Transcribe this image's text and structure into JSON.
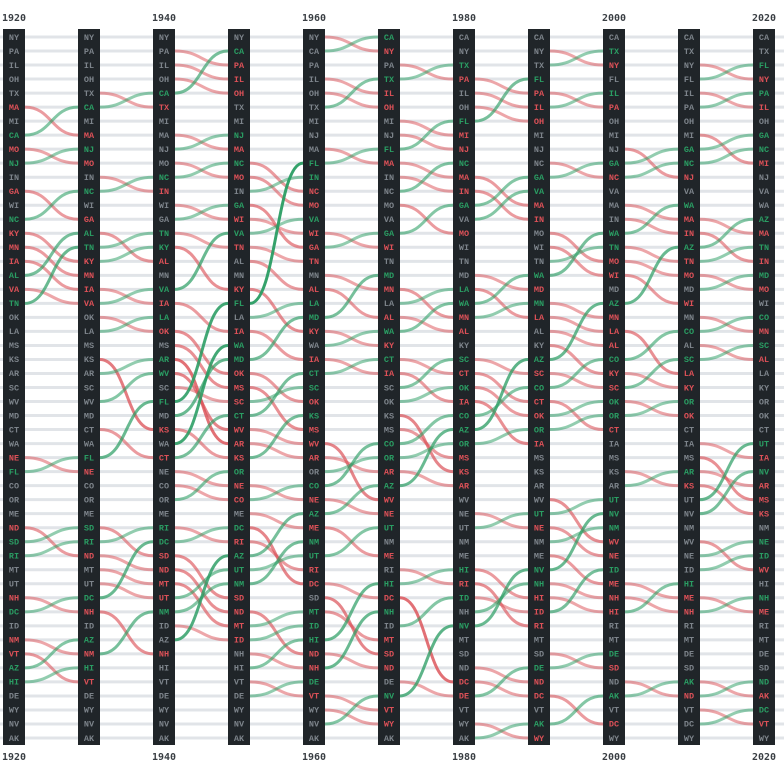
{
  "chart_data": {
    "type": "bump",
    "years": [
      "1920",
      null,
      "1940",
      null,
      "1960",
      null,
      "1980",
      null,
      "2000",
      null,
      "2020"
    ],
    "ranks": [
      [
        "NY",
        "PA",
        "IL",
        "OH",
        "TX",
        "MA",
        "MI",
        "CA",
        "MO",
        "NJ",
        "IN",
        "GA",
        "WI",
        "NC",
        "KY",
        "MN",
        "IA",
        "AL",
        "VA",
        "TN",
        "OK",
        "LA",
        "MS",
        "KS",
        "AR",
        "SC",
        "WV",
        "MD",
        "CT",
        "WA",
        "NE",
        "FL",
        "CO",
        "OR",
        "ME",
        "ND",
        "SD",
        "RI",
        "MT",
        "UT",
        "NH",
        "DC",
        "ID",
        "NM",
        "VT",
        "AZ",
        "HI",
        "DE",
        "WY",
        "NV",
        "AK"
      ],
      [
        "NY",
        "PA",
        "IL",
        "OH",
        "TX",
        "CA",
        "MI",
        "MA",
        "NJ",
        "MO",
        "IN",
        "NC",
        "WI",
        "GA",
        "AL",
        "TN",
        "KY",
        "MN",
        "IA",
        "VA",
        "OK",
        "LA",
        "MS",
        "KS",
        "AR",
        "SC",
        "WV",
        "MD",
        "CT",
        "WA",
        "FL",
        "NE",
        "CO",
        "OR",
        "ME",
        "SD",
        "RI",
        "ND",
        "MT",
        "UT",
        "DC",
        "NH",
        "ID",
        "AZ",
        "NM",
        "HI",
        "VT",
        "DE",
        "WY",
        "NV",
        "AK"
      ],
      [
        "NY",
        "PA",
        "IL",
        "OH",
        "CA",
        "TX",
        "MI",
        "MA",
        "NJ",
        "MO",
        "NC",
        "IN",
        "WI",
        "GA",
        "TN",
        "KY",
        "AL",
        "MN",
        "VA",
        "IA",
        "LA",
        "OK",
        "MS",
        "AR",
        "WV",
        "SC",
        "FL",
        "MD",
        "KS",
        "WA",
        "CT",
        "NE",
        "CO",
        "OR",
        "ME",
        "RI",
        "DC",
        "SD",
        "ND",
        "MT",
        "UT",
        "NM",
        "ID",
        "AZ",
        "NH",
        "HI",
        "VT",
        "DE",
        "WY",
        "NV",
        "AK"
      ],
      [
        "NY",
        "CA",
        "PA",
        "IL",
        "OH",
        "TX",
        "MI",
        "NJ",
        "MA",
        "NC",
        "MO",
        "IN",
        "GA",
        "WI",
        "VA",
        "TN",
        "AL",
        "MN",
        "KY",
        "FL",
        "LA",
        "IA",
        "WA",
        "MD",
        "OK",
        "MS",
        "SC",
        "CT",
        "WV",
        "AR",
        "KS",
        "OR",
        "NE",
        "CO",
        "ME",
        "DC",
        "RI",
        "AZ",
        "UT",
        "NM",
        "SD",
        "ND",
        "MT",
        "ID",
        "NH",
        "HI",
        "VT",
        "DE",
        "WY",
        "NV",
        "AK"
      ],
      [
        "NY",
        "CA",
        "PA",
        "IL",
        "OH",
        "TX",
        "MI",
        "NJ",
        "MA",
        "FL",
        "IN",
        "NC",
        "MO",
        "VA",
        "WI",
        "GA",
        "TN",
        "MN",
        "AL",
        "LA",
        "MD",
        "KY",
        "WA",
        "IA",
        "CT",
        "SC",
        "OK",
        "KS",
        "MS",
        "WV",
        "AR",
        "OR",
        "CO",
        "NE",
        "AZ",
        "ME",
        "NM",
        "UT",
        "RI",
        "DC",
        "SD",
        "MT",
        "ID",
        "HI",
        "ND",
        "NH",
        "DE",
        "VT",
        "WY",
        "NV",
        "AK"
      ],
      [
        "CA",
        "NY",
        "PA",
        "TX",
        "IL",
        "OH",
        "MI",
        "NJ",
        "FL",
        "MA",
        "IN",
        "NC",
        "MO",
        "VA",
        "GA",
        "WI",
        "TN",
        "MD",
        "MN",
        "LA",
        "AL",
        "WA",
        "KY",
        "CT",
        "IA",
        "SC",
        "OK",
        "KS",
        "MS",
        "CO",
        "OR",
        "AR",
        "AZ",
        "WV",
        "NE",
        "UT",
        "NM",
        "ME",
        "RI",
        "HI",
        "DC",
        "NH",
        "ID",
        "MT",
        "SD",
        "ND",
        "DE",
        "NV",
        "VT",
        "WY",
        "AK"
      ],
      [
        "CA",
        "NY",
        "TX",
        "PA",
        "IL",
        "OH",
        "FL",
        "MI",
        "NJ",
        "NC",
        "MA",
        "IN",
        "GA",
        "VA",
        "MO",
        "WI",
        "TN",
        "MD",
        "LA",
        "WA",
        "MN",
        "AL",
        "KY",
        "SC",
        "CT",
        "OK",
        "IA",
        "CO",
        "AZ",
        "OR",
        "MS",
        "KS",
        "AR",
        "WV",
        "NE",
        "UT",
        "NM",
        "ME",
        "HI",
        "RI",
        "ID",
        "NH",
        "NV",
        "MT",
        "SD",
        "ND",
        "DC",
        "DE",
        "VT",
        "WY",
        "AK"
      ],
      [
        "CA",
        "NY",
        "TX",
        "FL",
        "PA",
        "IL",
        "OH",
        "MI",
        "NJ",
        "NC",
        "GA",
        "VA",
        "MA",
        "IN",
        "MO",
        "WI",
        "TN",
        "WA",
        "MD",
        "MN",
        "LA",
        "AL",
        "KY",
        "AZ",
        "SC",
        "CO",
        "CT",
        "OK",
        "OR",
        "IA",
        "MS",
        "KS",
        "AR",
        "WV",
        "UT",
        "NE",
        "NM",
        "ME",
        "NV",
        "NH",
        "HI",
        "ID",
        "RI",
        "MT",
        "SD",
        "DE",
        "ND",
        "DC",
        "VT",
        "AK",
        "WY"
      ],
      [
        "CA",
        "TX",
        "NY",
        "FL",
        "IL",
        "PA",
        "OH",
        "MI",
        "NJ",
        "GA",
        "NC",
        "VA",
        "MA",
        "IN",
        "WA",
        "TN",
        "MO",
        "WI",
        "MD",
        "AZ",
        "MN",
        "LA",
        "AL",
        "CO",
        "KY",
        "SC",
        "OK",
        "OR",
        "CT",
        "IA",
        "MS",
        "KS",
        "AR",
        "UT",
        "NV",
        "NM",
        "WV",
        "NE",
        "ID",
        "ME",
        "NH",
        "HI",
        "RI",
        "MT",
        "DE",
        "SD",
        "ND",
        "AK",
        "VT",
        "DC",
        "WY"
      ],
      [
        "CA",
        "TX",
        "NY",
        "FL",
        "IL",
        "PA",
        "OH",
        "MI",
        "GA",
        "NC",
        "NJ",
        "VA",
        "WA",
        "MA",
        "IN",
        "AZ",
        "TN",
        "MO",
        "MD",
        "WI",
        "MN",
        "CO",
        "AL",
        "SC",
        "LA",
        "KY",
        "OR",
        "OK",
        "CT",
        "IA",
        "MS",
        "AR",
        "KS",
        "UT",
        "NV",
        "NM",
        "WV",
        "NE",
        "ID",
        "HI",
        "ME",
        "NH",
        "RI",
        "MT",
        "DE",
        "SD",
        "AK",
        "ND",
        "VT",
        "DC",
        "WY"
      ],
      [
        "CA",
        "TX",
        "FL",
        "NY",
        "PA",
        "IL",
        "OH",
        "GA",
        "NC",
        "MI",
        "NJ",
        "VA",
        "WA",
        "AZ",
        "MA",
        "TN",
        "IN",
        "MD",
        "MO",
        "WI",
        "CO",
        "MN",
        "SC",
        "AL",
        "LA",
        "KY",
        "OR",
        "OK",
        "CT",
        "UT",
        "IA",
        "NV",
        "AR",
        "MS",
        "KS",
        "NM",
        "NE",
        "ID",
        "WV",
        "HI",
        "NH",
        "ME",
        "RI",
        "MT",
        "DE",
        "SD",
        "ND",
        "AK",
        "DC",
        "VT",
        "WY"
      ]
    ],
    "colors": {
      "rise": "#2a9d63",
      "fall": "#dc5158",
      "same": "#7d848b",
      "column": "#202529",
      "row": "#e1e4e8"
    }
  }
}
